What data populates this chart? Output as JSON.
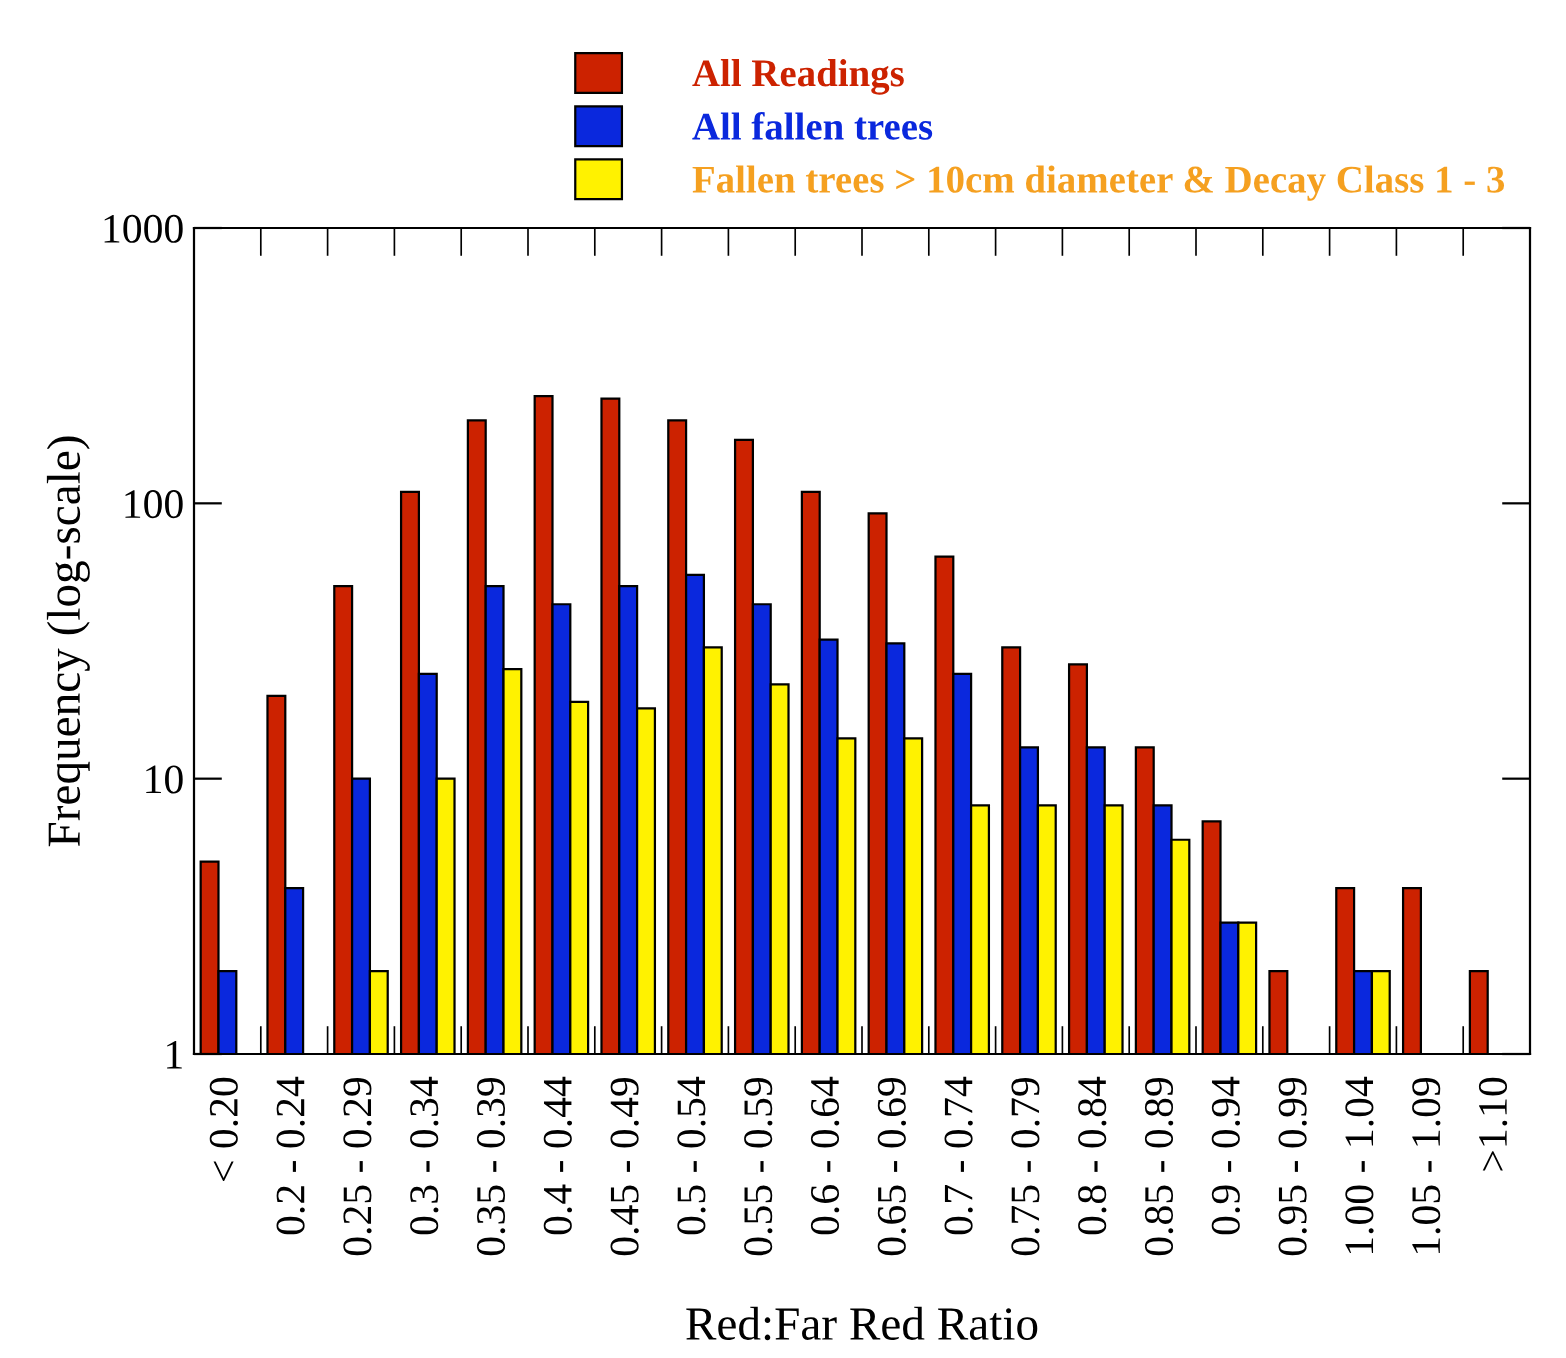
{
  "chart_data": {
    "type": "bar",
    "xlabel": "Red:Far Red Ratio",
    "ylabel": "Frequency (log-scale)",
    "categories": [
      "< 0.20",
      "0.2 - 0.24",
      "0.25 - 0.29",
      "0.3 - 0.34",
      "0.35 - 0.39",
      "0.4 - 0.44",
      "0.45 - 0.49",
      "0.5 - 0.54",
      "0.55 - 0.59",
      "0.6 - 0.64",
      "0.65 - 0.69",
      "0.7 - 0.74",
      "0.75 - 0.79",
      "0.8 - 0.84",
      "0.85 - 0.89",
      "0.9 - 0.94",
      "0.95 - 0.99",
      "1.00 - 1.04",
      "1.05 - 1.09",
      ">1.10"
    ],
    "series": [
      {
        "name": "All Readings",
        "color": "#cc2200",
        "values": [
          5,
          20,
          50,
          110,
          200,
          245,
          240,
          200,
          170,
          110,
          92,
          64,
          30,
          26,
          13,
          7,
          2,
          4,
          4,
          2
        ]
      },
      {
        "name": "All fallen trees",
        "color": "#0a28dd",
        "values": [
          2,
          4,
          10,
          24,
          50,
          43,
          50,
          55,
          43,
          32,
          31,
          24,
          13,
          13,
          8,
          3,
          null,
          2,
          null,
          null
        ]
      },
      {
        "name": "Fallen trees > 10cm diameter & Decay Class 1 - 3",
        "color": "#fff200",
        "values": [
          null,
          null,
          2,
          10,
          25,
          19,
          18,
          30,
          22,
          14,
          14,
          8,
          8,
          8,
          6,
          3,
          null,
          2,
          null,
          null
        ]
      }
    ],
    "log": true,
    "ylim": [
      1,
      1000
    ],
    "yticks": [
      1,
      10,
      100,
      1000
    ],
    "grid": false,
    "legend": "top"
  }
}
